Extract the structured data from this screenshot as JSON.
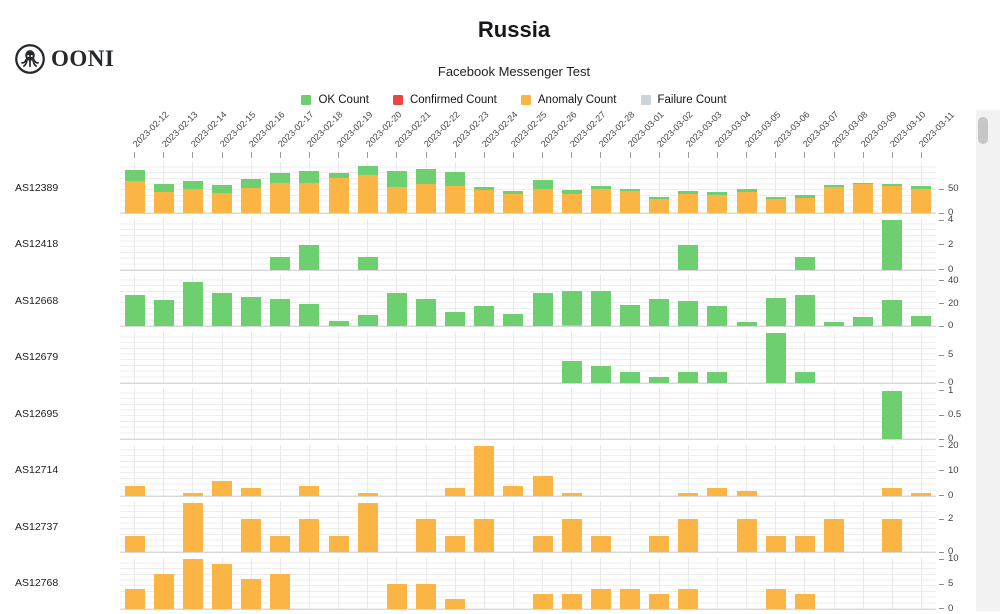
{
  "header": {
    "logo_text": "OONI",
    "title": "Russia",
    "subtitle": "Facebook Messenger Test"
  },
  "legend": [
    {
      "label": "OK Count",
      "color": "#6ecf70"
    },
    {
      "label": "Confirmed Count",
      "color": "#e8483f"
    },
    {
      "label": "Anomaly Count",
      "color": "#fab545"
    },
    {
      "label": "Failure Count",
      "color": "#ccd3d9"
    }
  ],
  "colors": {
    "ok": "#6ecf70",
    "confirmed": "#e8483f",
    "anomaly": "#fab545",
    "failure": "#ccd3d9"
  },
  "chart_data": {
    "type": "bar",
    "stacked": true,
    "title": "Russia",
    "subtitle": "Facebook Messenger Test",
    "legend_position": "top",
    "grid": true,
    "x": [
      "2023-02-12",
      "2023-02-13",
      "2023-02-14",
      "2023-02-15",
      "2023-02-16",
      "2023-02-17",
      "2023-02-18",
      "2023-02-19",
      "2023-02-20",
      "2023-02-21",
      "2023-02-22",
      "2023-02-23",
      "2023-02-24",
      "2023-02-25",
      "2023-02-26",
      "2023-02-27",
      "2023-02-28",
      "2023-03-01",
      "2023-03-02",
      "2023-03-03",
      "2023-03-04",
      "2023-03-05",
      "2023-03-06",
      "2023-03-07",
      "2023-03-08",
      "2023-03-09",
      "2023-03-10",
      "2023-03-11"
    ],
    "rows": [
      {
        "label": "AS12389",
        "yticks": [
          0,
          50
        ],
        "ymax": 105,
        "ok": [
          22,
          18,
          17,
          16,
          19,
          19,
          26,
          9,
          19,
          34,
          32,
          30,
          5,
          6,
          19,
          9,
          6,
          5,
          4,
          6,
          6,
          7,
          5,
          6,
          4,
          3,
          4,
          6
        ],
        "anomaly": [
          67,
          43,
          50,
          42,
          52,
          63,
          62,
          73,
          78,
          54,
          60,
          56,
          49,
          39,
          50,
          40,
          50,
          45,
          30,
          39,
          37,
          43,
          29,
          32,
          54,
          60,
          56,
          50
        ]
      },
      {
        "label": "AS12418",
        "yticks": [
          0,
          2,
          4
        ],
        "ymax": 4.1,
        "ok": [
          0,
          0,
          0,
          0,
          0,
          1,
          2,
          0,
          1,
          0,
          0,
          0,
          0,
          0,
          0,
          0,
          0,
          0,
          0,
          2,
          0,
          0,
          0,
          1,
          0,
          0,
          4,
          0
        ],
        "anomaly": [
          0,
          0,
          0,
          0,
          0,
          0,
          0,
          0,
          0,
          0,
          0,
          0,
          0,
          0,
          0,
          0,
          0,
          0,
          0,
          0,
          0,
          0,
          0,
          0,
          0,
          0,
          0,
          0
        ]
      },
      {
        "label": "AS12668",
        "yticks": [
          0,
          20,
          40
        ],
        "ymax": 45,
        "ok": [
          28,
          23,
          39,
          29,
          26,
          24,
          20,
          5,
          10,
          29,
          24,
          13,
          18,
          11,
          29,
          30,
          31,
          19,
          24,
          22,
          18,
          4,
          25,
          28,
          4,
          8,
          23,
          9
        ],
        "anomaly": [
          0,
          0,
          0,
          0,
          0,
          0,
          0,
          0,
          0,
          0,
          0,
          0,
          0,
          0,
          0,
          1,
          0,
          0,
          0,
          0,
          0,
          0,
          0,
          0,
          0,
          0,
          0,
          0
        ]
      },
      {
        "label": "AS12679",
        "yticks": [
          0,
          5
        ],
        "ymax": 9.3,
        "ok": [
          0,
          0,
          0,
          0,
          0,
          0,
          0,
          0,
          0,
          0,
          0,
          0,
          0,
          0,
          0,
          4,
          3,
          2,
          1,
          2,
          2,
          0,
          9,
          2,
          0,
          0,
          0,
          0
        ],
        "anomaly": [
          0,
          0,
          0,
          0,
          0,
          0,
          0,
          0,
          0,
          0,
          0,
          0,
          0,
          0,
          0,
          0,
          0,
          0,
          0,
          0,
          0,
          0,
          0,
          0,
          0,
          0,
          0,
          0
        ]
      },
      {
        "label": "AS12695",
        "yticks": [
          0,
          0.5,
          1
        ],
        "ymax": 1.05,
        "ok": [
          0,
          0,
          0,
          0,
          0,
          0,
          0,
          0,
          0,
          0,
          0,
          0,
          0,
          0,
          0,
          0,
          0,
          0,
          0,
          0,
          0,
          0,
          0,
          0,
          0,
          0,
          1,
          0
        ],
        "anomaly": [
          0,
          0,
          0,
          0,
          0,
          0,
          0,
          0,
          0,
          0,
          0,
          0,
          0,
          0,
          0,
          0,
          0,
          0,
          0,
          0,
          0,
          0,
          0,
          0,
          0,
          0,
          0,
          0
        ]
      },
      {
        "label": "AS12714",
        "yticks": [
          0,
          10,
          20
        ],
        "ymax": 20.5,
        "ok": [
          0,
          0,
          0,
          0,
          0,
          0,
          0,
          0,
          0,
          0,
          0,
          0,
          0,
          0,
          0,
          0,
          0,
          0,
          0,
          0,
          0,
          0,
          0,
          0,
          0,
          0,
          0,
          0
        ],
        "anomaly": [
          4,
          0,
          1,
          6,
          3,
          0,
          4,
          0,
          1,
          0,
          0,
          3,
          20,
          4,
          8,
          1,
          0,
          0,
          0,
          1,
          3,
          2,
          0,
          0,
          0,
          0,
          3,
          1
        ]
      },
      {
        "label": "AS12737",
        "yticks": [
          0,
          2
        ],
        "ymax": 3.1,
        "ok": [
          0,
          0,
          0,
          0,
          0,
          0,
          0,
          0,
          0,
          0,
          0,
          0,
          0,
          0,
          0,
          0,
          0,
          0,
          0,
          0,
          0,
          0,
          0,
          0,
          0,
          0,
          0,
          0
        ],
        "anomaly": [
          1,
          0,
          3,
          0,
          2,
          1,
          2,
          1,
          3,
          0,
          2,
          1,
          2,
          0,
          1,
          2,
          1,
          0,
          1,
          2,
          0,
          2,
          1,
          1,
          2,
          0,
          2,
          0
        ]
      },
      {
        "label": "AS12768",
        "yticks": [
          0,
          5,
          10
        ],
        "ymax": 10.3,
        "ok": [
          0,
          0,
          0,
          0,
          0,
          0,
          0,
          0,
          0,
          0,
          0,
          0,
          0,
          0,
          0,
          0,
          0,
          0,
          0,
          0,
          0,
          0,
          0,
          0,
          0,
          0,
          0,
          0
        ],
        "anomaly": [
          4,
          7,
          10,
          9,
          6,
          7,
          0,
          0,
          0,
          5,
          5,
          2,
          0,
          0,
          3,
          3,
          4,
          4,
          3,
          4,
          0,
          0,
          4,
          3,
          0,
          0,
          0,
          0
        ]
      }
    ]
  }
}
